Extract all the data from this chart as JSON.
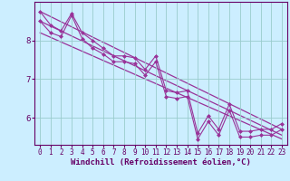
{
  "bg_color": "#cceeff",
  "line_color": "#993399",
  "grid_color": "#99cccc",
  "axis_color": "#660066",
  "xlabel": "Windchill (Refroidissement éolien,°C)",
  "xlabel_fontsize": 6.5,
  "tick_fontsize": 5.5,
  "xlim": [
    -0.5,
    23.5
  ],
  "ylim": [
    5.3,
    9.0
  ],
  "yticks": [
    6,
    7,
    8
  ],
  "xticks": [
    0,
    1,
    2,
    3,
    4,
    5,
    6,
    7,
    8,
    9,
    10,
    11,
    12,
    13,
    14,
    15,
    16,
    17,
    18,
    19,
    20,
    21,
    22,
    23
  ],
  "series1_x": [
    0,
    1,
    2,
    3,
    4,
    5,
    6,
    7,
    8,
    9,
    10,
    11,
    12,
    13,
    14,
    15,
    16,
    17,
    18,
    19,
    20,
    21,
    22,
    23
  ],
  "series1_y": [
    8.5,
    8.2,
    8.1,
    8.65,
    8.05,
    7.8,
    7.65,
    7.45,
    7.45,
    7.4,
    7.1,
    7.45,
    6.55,
    6.5,
    6.55,
    5.45,
    5.9,
    5.55,
    6.2,
    5.5,
    5.5,
    5.55,
    5.55,
    5.7
  ],
  "series2_x": [
    0,
    1,
    2,
    3,
    4,
    5,
    6,
    7,
    8,
    9,
    10,
    11,
    12,
    13,
    14,
    15,
    16,
    17,
    18,
    19,
    20,
    21,
    22,
    23
  ],
  "series2_y": [
    8.75,
    8.4,
    8.25,
    8.7,
    8.2,
    8.0,
    7.8,
    7.6,
    7.6,
    7.55,
    7.25,
    7.6,
    6.7,
    6.65,
    6.7,
    5.6,
    6.05,
    5.7,
    6.35,
    5.65,
    5.65,
    5.7,
    5.7,
    5.85
  ],
  "trend1_x": [
    0,
    23
  ],
  "trend1_y": [
    8.75,
    5.7
  ],
  "trend2_x": [
    0,
    23
  ],
  "trend2_y": [
    8.5,
    5.55
  ],
  "trend3_x": [
    0,
    23
  ],
  "trend3_y": [
    8.2,
    5.45
  ]
}
